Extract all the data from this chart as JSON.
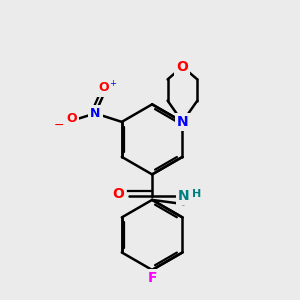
{
  "bg_color": "#ebebeb",
  "bond_color": "black",
  "bond_width": 1.8,
  "atom_colors": {
    "O": "#ff0000",
    "N": "#0000ff",
    "N_amide": "#0000ff",
    "N_teal": "#008080",
    "F": "#ff00ff",
    "C": "black"
  },
  "font_size": 10,
  "font_size_small": 8
}
